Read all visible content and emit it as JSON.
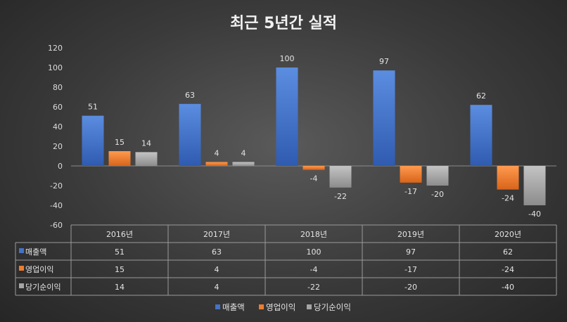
{
  "chart_data": {
    "type": "bar",
    "title": "최근 5년간 실적",
    "categories": [
      "2016년",
      "2017년",
      "2018년",
      "2019년",
      "2020년"
    ],
    "series": [
      {
        "name": "매출액",
        "values": [
          51,
          63,
          100,
          97,
          62
        ],
        "color": "#4472c4"
      },
      {
        "name": "영업이익",
        "values": [
          15,
          4,
          -4,
          -17,
          -24
        ],
        "color": "#ed7d31"
      },
      {
        "name": "당기순이익",
        "values": [
          14,
          4,
          -22,
          -20,
          -40
        ],
        "color": "#a5a5a5"
      }
    ],
    "ylim": [
      -60,
      120
    ],
    "yticks": [
      120,
      100,
      80,
      60,
      40,
      20,
      0,
      -20,
      -40,
      -60
    ],
    "legend": "bottom",
    "data_table": true,
    "grid": false
  }
}
